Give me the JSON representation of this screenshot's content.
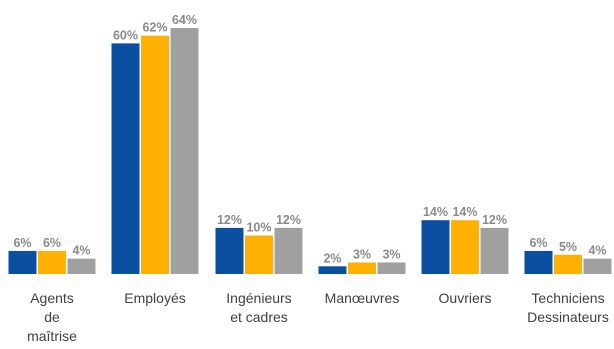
{
  "chart_data": {
    "type": "bar",
    "categories": [
      [
        "Agents",
        "de",
        "maîtrise"
      ],
      [
        "Employés"
      ],
      [
        "Ingénieurs",
        "et cadres"
      ],
      [
        "Manœuvres"
      ],
      [
        "Ouvriers"
      ],
      [
        "Techniciens",
        "Dessinateurs"
      ]
    ],
    "series": [
      {
        "values": [
          6,
          60,
          12,
          2,
          14,
          6
        ],
        "labels": [
          "6%",
          "60%",
          "12%",
          "2%",
          "14%",
          "6%"
        ],
        "color": "#0a4fa0"
      },
      {
        "values": [
          6,
          62,
          10,
          3,
          14,
          5
        ],
        "labels": [
          "6%",
          "62%",
          "10%",
          "3%",
          "14%",
          "5%"
        ],
        "color": "#ffb000"
      },
      {
        "values": [
          4,
          64,
          12,
          3,
          12,
          4
        ],
        "labels": [
          "4%",
          "64%",
          "12%",
          "3%",
          "12%",
          "4%"
        ],
        "color": "#a0a0a0"
      }
    ],
    "ylim": [
      0,
      64
    ],
    "grid": false,
    "legend": "none",
    "value_label_color": "#8a8a8a",
    "category_label_color": "#404040"
  }
}
